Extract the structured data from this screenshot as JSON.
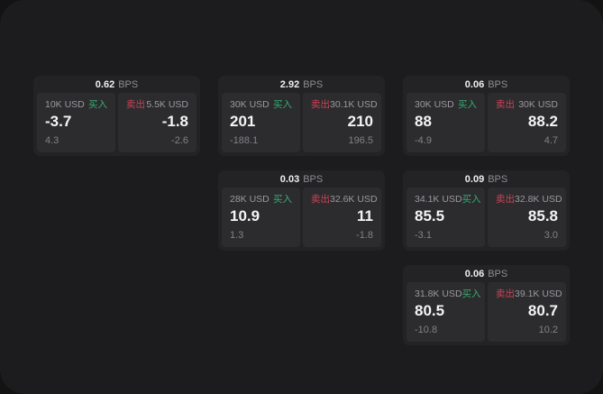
{
  "labels": {
    "buy": "买入",
    "sell": "卖出",
    "bps_unit": "BPS"
  },
  "colors": {
    "page_bg": "#1c1c1e",
    "card_bg": "#232325",
    "panel_bg": "#2c2c2e",
    "buy": "#35ad72",
    "sell": "#cc4257"
  },
  "cards": [
    {
      "spread": "0.62",
      "buy": {
        "size": "10K USD",
        "price": "-3.7",
        "sub": "4.3"
      },
      "sell": {
        "size": "5.5K USD",
        "price": "-1.8",
        "sub": "-2.6"
      }
    },
    {
      "spread": "2.92",
      "buy": {
        "size": "30K USD",
        "price": "201",
        "sub": "-188.1"
      },
      "sell": {
        "size": "30.1K USD",
        "price": "210",
        "sub": "196.5"
      }
    },
    {
      "spread": "0.06",
      "buy": {
        "size": "30K USD",
        "price": "88",
        "sub": "-4.9"
      },
      "sell": {
        "size": "30K USD",
        "price": "88.2",
        "sub": "4.7"
      }
    },
    {
      "spread": "0.03",
      "buy": {
        "size": "28K USD",
        "price": "10.9",
        "sub": "1.3"
      },
      "sell": {
        "size": "32.6K USD",
        "price": "11",
        "sub": "-1.8"
      }
    },
    {
      "spread": "0.09",
      "buy": {
        "size": "34.1K USD",
        "price": "85.5",
        "sub": "-3.1"
      },
      "sell": {
        "size": "32.8K USD",
        "price": "85.8",
        "sub": "3.0"
      }
    },
    {
      "spread": "0.06",
      "buy": {
        "size": "31.8K USD",
        "price": "80.5",
        "sub": "-10.8"
      },
      "sell": {
        "size": "39.1K USD",
        "price": "80.7",
        "sub": "10.2"
      }
    }
  ]
}
